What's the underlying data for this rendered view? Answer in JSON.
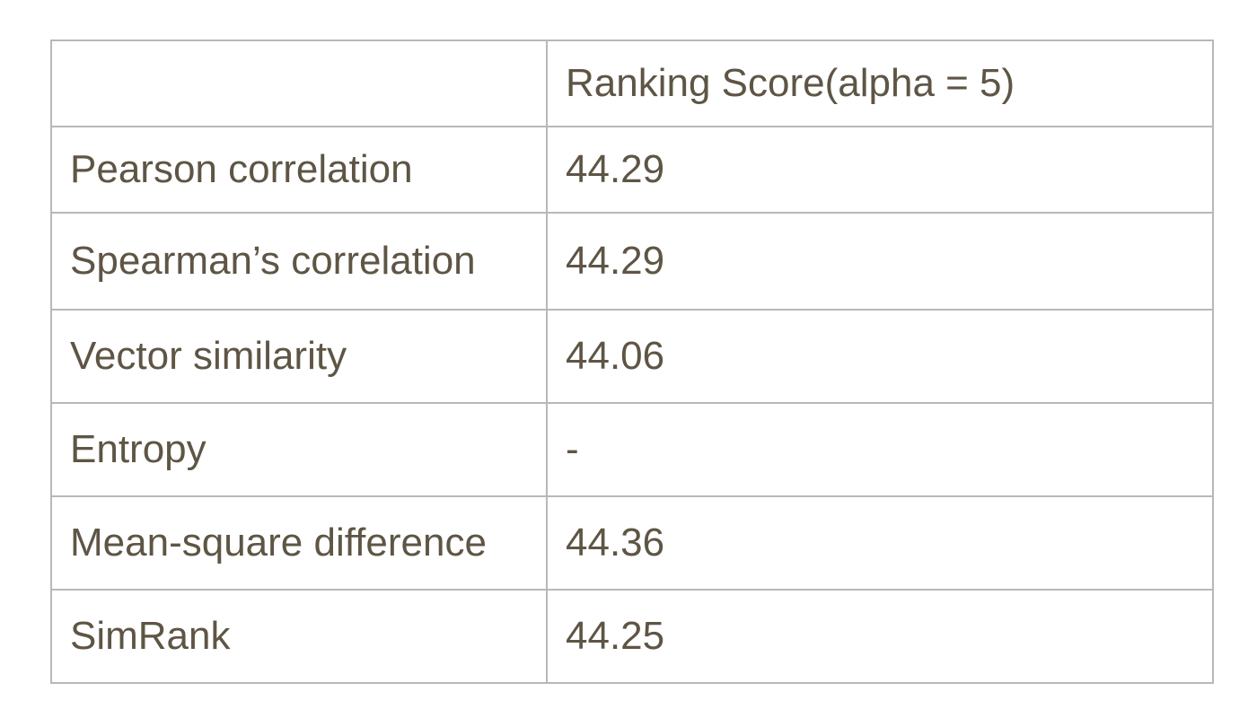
{
  "table": {
    "header": {
      "corner": "",
      "column": "Ranking Score(alpha = 5)"
    },
    "rows": [
      {
        "method": "Pearson correlation",
        "score": "44.29"
      },
      {
        "method": "Spearman’s correlation",
        "score": "44.29"
      },
      {
        "method": "Vector similarity",
        "score": "44.06"
      },
      {
        "method": "Entropy",
        "score": "-"
      },
      {
        "method": "Mean-square difference",
        "score": "44.36"
      },
      {
        "method": "SimRank",
        "score": "44.25"
      }
    ],
    "colors": {
      "text": "#5e5545",
      "border": "#b8b8b8"
    }
  }
}
